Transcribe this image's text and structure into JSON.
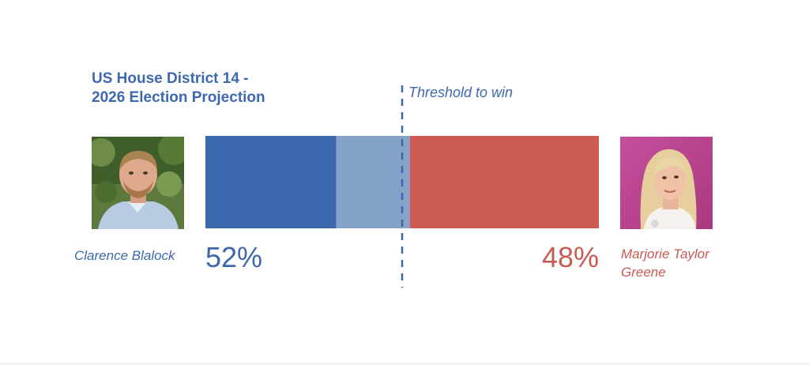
{
  "chart_data": {
    "type": "bar",
    "orientation": "horizontal-stacked",
    "title_lines": [
      "US House District 14 -",
      "2026 Election Projection"
    ],
    "threshold_label": "Threshold to win",
    "threshold": 50,
    "xlim": [
      0,
      100
    ],
    "series": [
      {
        "name": "Clarence Blalock",
        "value": 52,
        "label": "52%",
        "color": "#3a68ad",
        "beyond_threshold_color": "#85a3c9"
      },
      {
        "name": "Marjorie Taylor Greene",
        "value": 48,
        "label": "48%",
        "color": "#cd5b53"
      }
    ],
    "grid": false,
    "legend": "none"
  },
  "candidates": {
    "left": {
      "name": "Clarence Blalock",
      "photo_icon": "candidate-photo-man",
      "color": "#3a68ad"
    },
    "right": {
      "name": "Marjorie Taylor Greene",
      "photo_icon": "candidate-photo-woman",
      "color": "#cd5b53"
    }
  }
}
